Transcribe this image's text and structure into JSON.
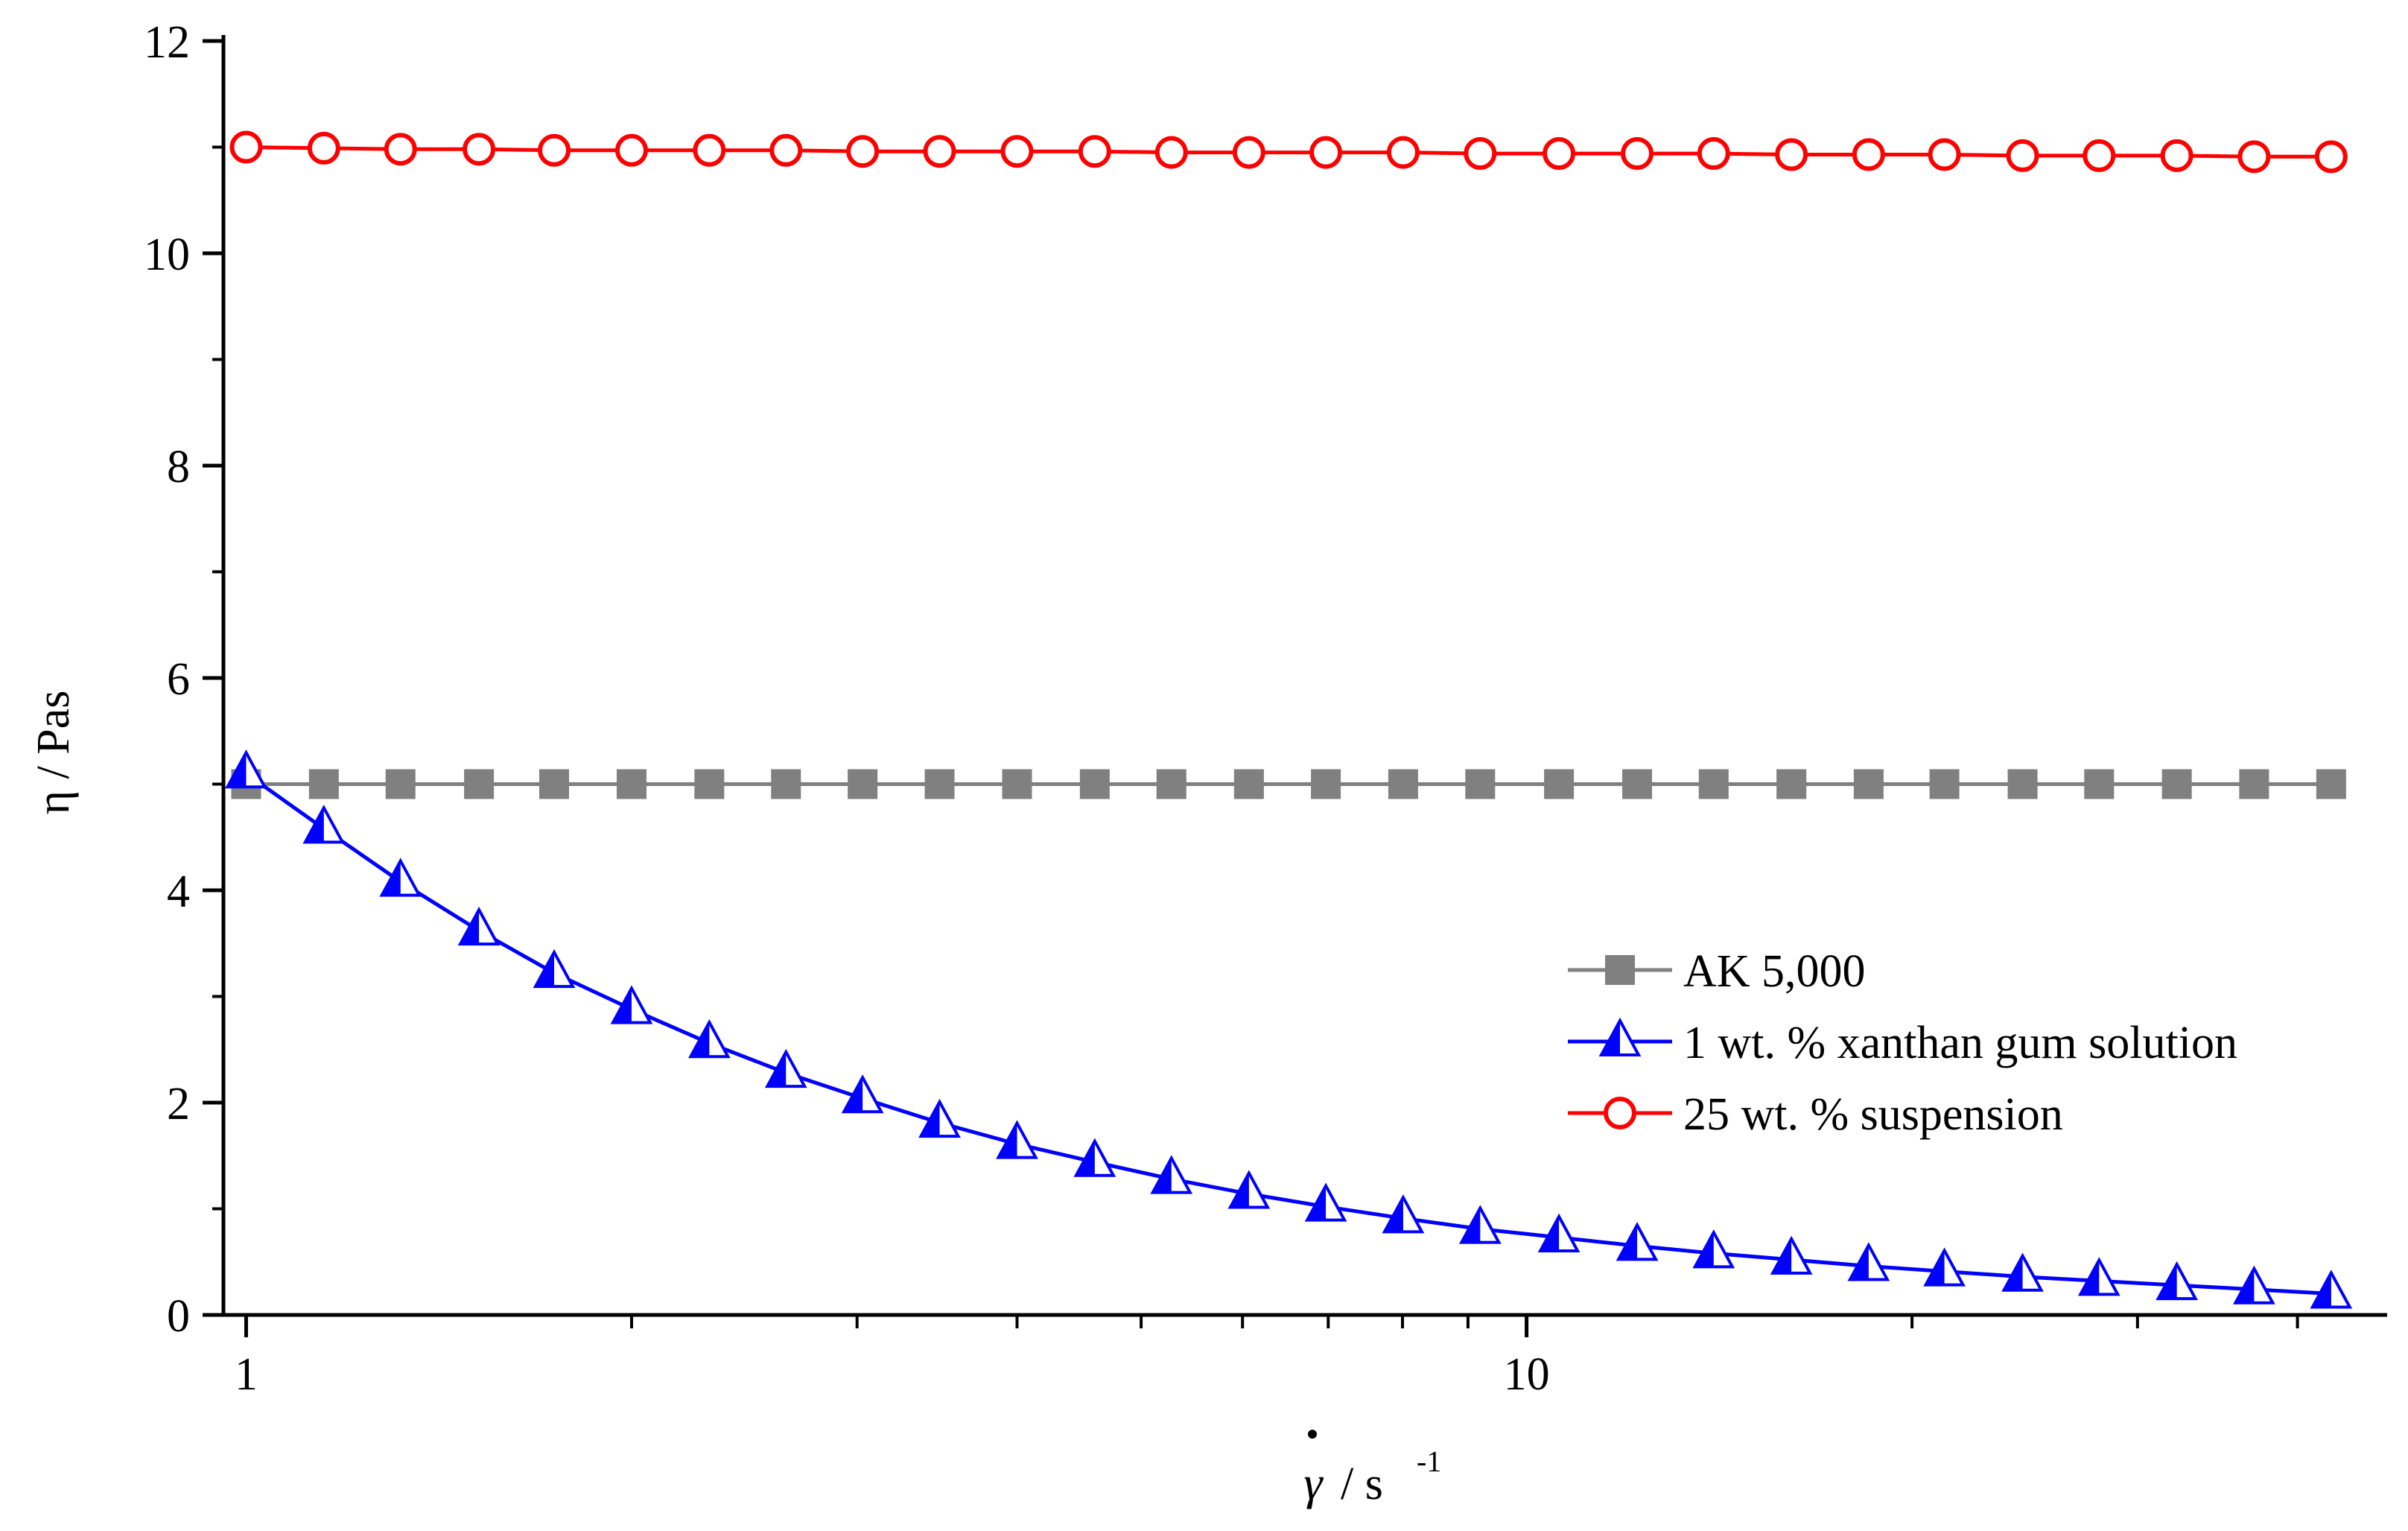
{
  "chart_data": {
    "type": "line",
    "title": "",
    "xlabel": "/ s",
    "xlabel_symbol": "γ",
    "xlabel_superscript": "-1",
    "ylabel": "η / Pas",
    "xscale": "log",
    "xlim": [
      0.96,
      47
    ],
    "ylim": [
      0,
      12
    ],
    "x_ticks": [
      1,
      10
    ],
    "x_tick_labels": [
      "1",
      "10"
    ],
    "y_ticks": [
      0,
      2,
      4,
      6,
      8,
      10,
      12
    ],
    "y_tick_labels": [
      "0",
      "2",
      "4",
      "6",
      "8",
      "10",
      "12"
    ],
    "grid": false,
    "legend_position": "center-right",
    "x": [
      1,
      1.15,
      1.32,
      1.52,
      1.74,
      2,
      2.3,
      2.64,
      3.03,
      3.48,
      4,
      4.6,
      5.28,
      6.07,
      6.97,
      8.01,
      9.2,
      10.6,
      12.2,
      14,
      16.1,
      18.5,
      21.2,
      24.4,
      28,
      32.2,
      37,
      42.5
    ],
    "series": [
      {
        "name": "AK 5,000",
        "color": "#808080",
        "marker": "square",
        "values": [
          5,
          5,
          5,
          5,
          5,
          5,
          5,
          5,
          5,
          5,
          5,
          5,
          5,
          5,
          5,
          5,
          5,
          5,
          5,
          5,
          5,
          5,
          5,
          5,
          5,
          5,
          5,
          5
        ]
      },
      {
        "name": "1 wt. % xanthan gum solution",
        "color": "#0000ff",
        "marker": "triangle",
        "values": [
          5.1,
          4.58,
          4.08,
          3.62,
          3.22,
          2.88,
          2.56,
          2.28,
          2.04,
          1.81,
          1.61,
          1.44,
          1.28,
          1.14,
          1.02,
          0.91,
          0.81,
          0.73,
          0.65,
          0.58,
          0.52,
          0.46,
          0.41,
          0.36,
          0.32,
          0.28,
          0.24,
          0.2
        ]
      },
      {
        "name": "25 wt. % suspension",
        "color": "#ff0000",
        "marker": "circle",
        "values": [
          11.0,
          10.99,
          10.98,
          10.98,
          10.97,
          10.97,
          10.97,
          10.97,
          10.96,
          10.96,
          10.96,
          10.96,
          10.95,
          10.95,
          10.95,
          10.95,
          10.94,
          10.94,
          10.94,
          10.94,
          10.93,
          10.93,
          10.93,
          10.92,
          10.92,
          10.92,
          10.91,
          10.91
        ]
      }
    ]
  }
}
